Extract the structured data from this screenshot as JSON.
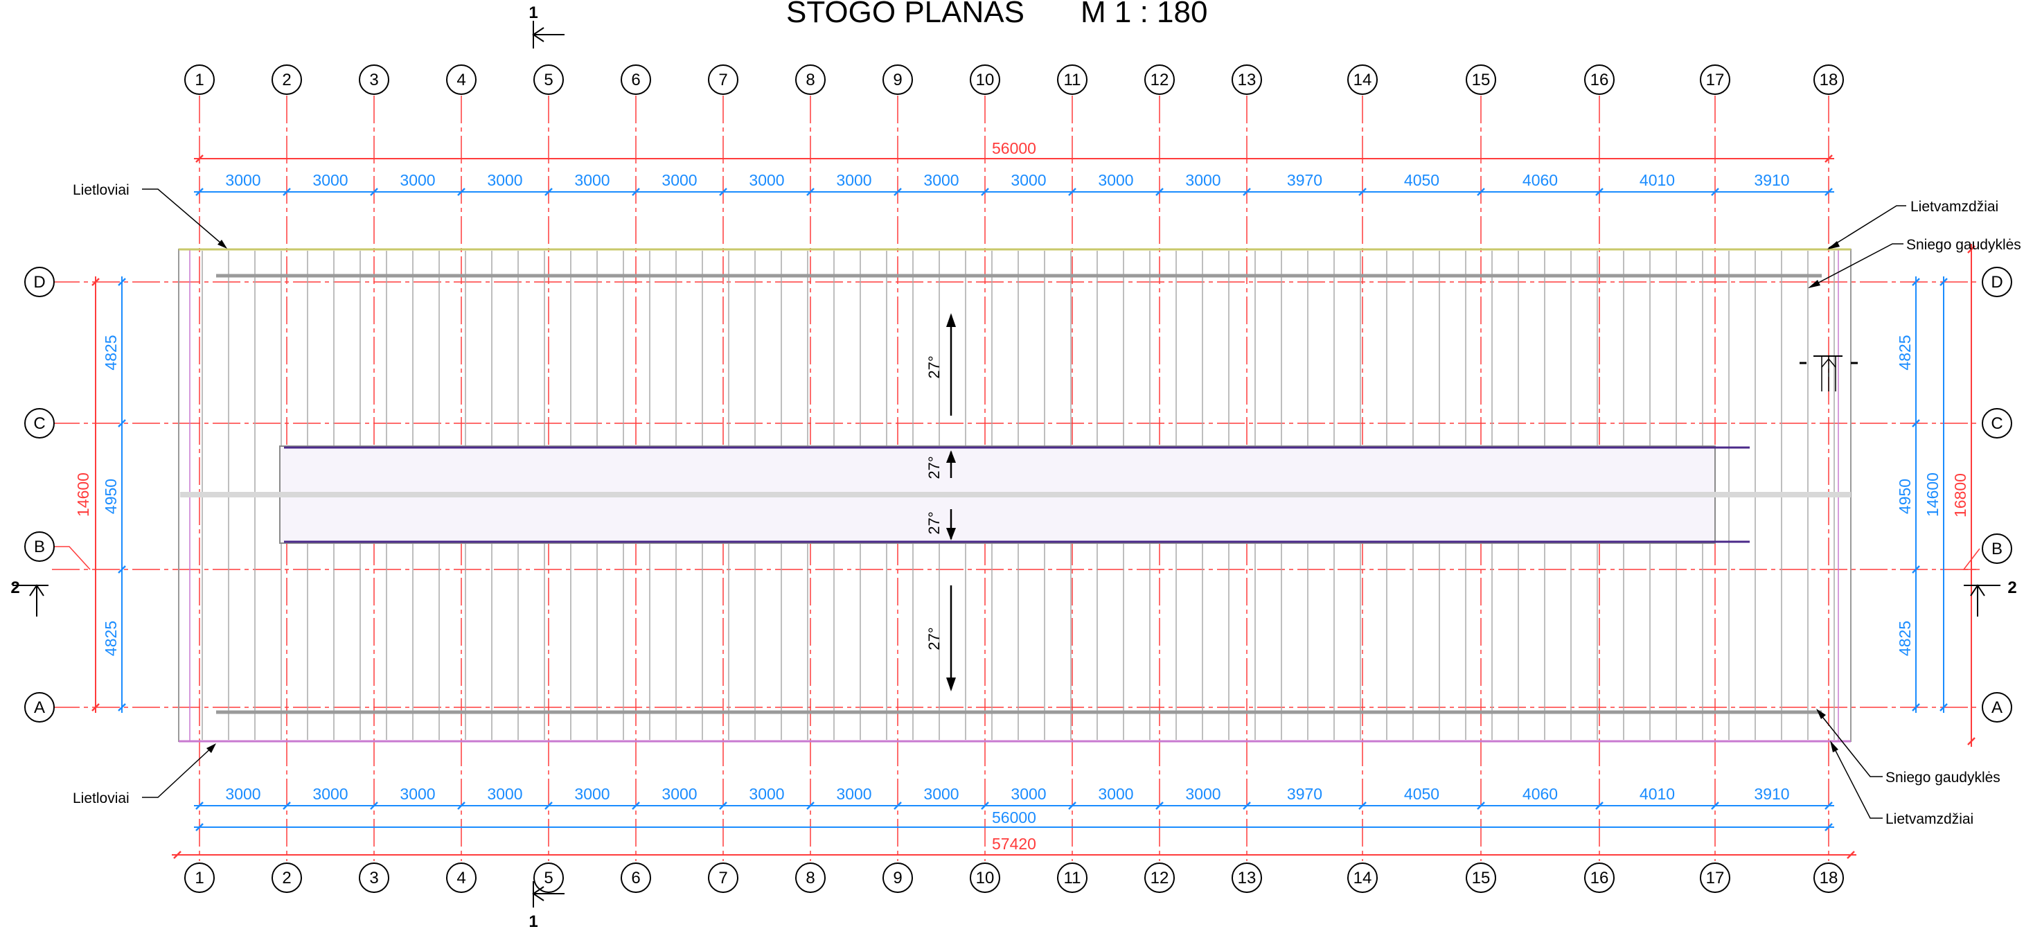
{
  "title": "STOGO PLANAS",
  "scale": "M 1 : 180",
  "grid_columns": [
    "1",
    "2",
    "3",
    "4",
    "5",
    "6",
    "7",
    "8",
    "9",
    "10",
    "11",
    "12",
    "13",
    "14",
    "15",
    "16",
    "17",
    "18"
  ],
  "grid_rows": [
    "D",
    "C",
    "B",
    "A"
  ],
  "dims_top": {
    "overall": "56000",
    "spans": [
      "3000",
      "3000",
      "3000",
      "3000",
      "3000",
      "3000",
      "3000",
      "3000",
      "3000",
      "3000",
      "3000",
      "3000",
      "3970",
      "4050",
      "4060",
      "4010",
      "3910"
    ]
  },
  "dims_bottom": {
    "spans": [
      "3000",
      "3000",
      "3000",
      "3000",
      "3000",
      "3000",
      "3000",
      "3000",
      "3000",
      "3000",
      "3000",
      "3000",
      "3970",
      "4050",
      "4060",
      "4010",
      "3910"
    ],
    "overall_axes": "56000",
    "overall_total": "57420"
  },
  "dims_left": {
    "overall": "14600",
    "spans": [
      "4825",
      "4950",
      "4825"
    ]
  },
  "dims_right": {
    "spans": [
      "4825",
      "4950",
      "4825"
    ],
    "overall_axes": "14600",
    "overall_total": "16800"
  },
  "slopes": [
    "27°",
    "27°",
    "27°",
    "27°"
  ],
  "section_marks": {
    "section_1": "1",
    "section_2": "2"
  },
  "labels": {
    "gutter_top": "Lietloviai",
    "gutter_bottom": "Lietloviai",
    "downpipe_top": "Lietvamzdžiai",
    "downpipe_bottom": "Lietvamzdžiai",
    "snow_guard_top": "Sniego gaudyklės",
    "snow_guard_bottom": "Sniego gaudyklės"
  },
  "colors": {
    "grid_red": "#ff3b3b",
    "dimension_blue": "#1a8cff",
    "ridge_purple": "#4b2a8a",
    "roof_line": "#9a9a9a",
    "ink": "#000000"
  }
}
